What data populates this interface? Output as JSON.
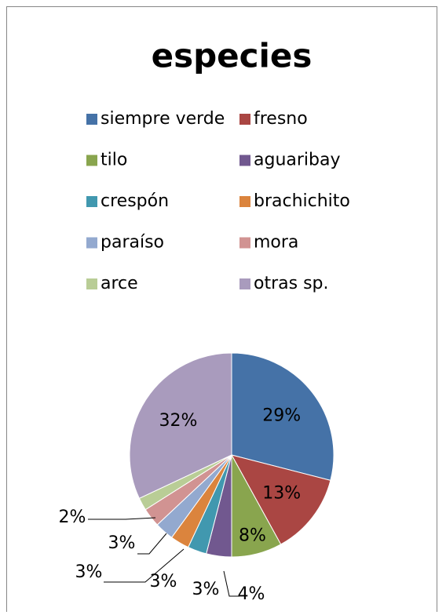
{
  "chart_data": {
    "type": "pie",
    "title": "especies",
    "categories": [
      "siempre verde",
      "fresno",
      "tilo",
      "aguaribay",
      "crespón",
      "brachichito",
      "paraíso",
      "mora",
      "arce",
      "otras sp."
    ],
    "values": [
      29,
      13,
      8,
      4,
      3,
      3,
      3,
      3,
      2,
      32
    ],
    "value_labels": [
      "29%",
      "13%",
      "8%",
      "4%",
      "3%",
      "3%",
      "3%",
      "3%",
      "2%",
      "32%"
    ],
    "colors": [
      "#4572a7",
      "#aa4643",
      "#89a54e",
      "#71588f",
      "#4198af",
      "#db843d",
      "#93a9cf",
      "#d19392",
      "#b9cd96",
      "#a99bbd"
    ],
    "legend": "top"
  }
}
